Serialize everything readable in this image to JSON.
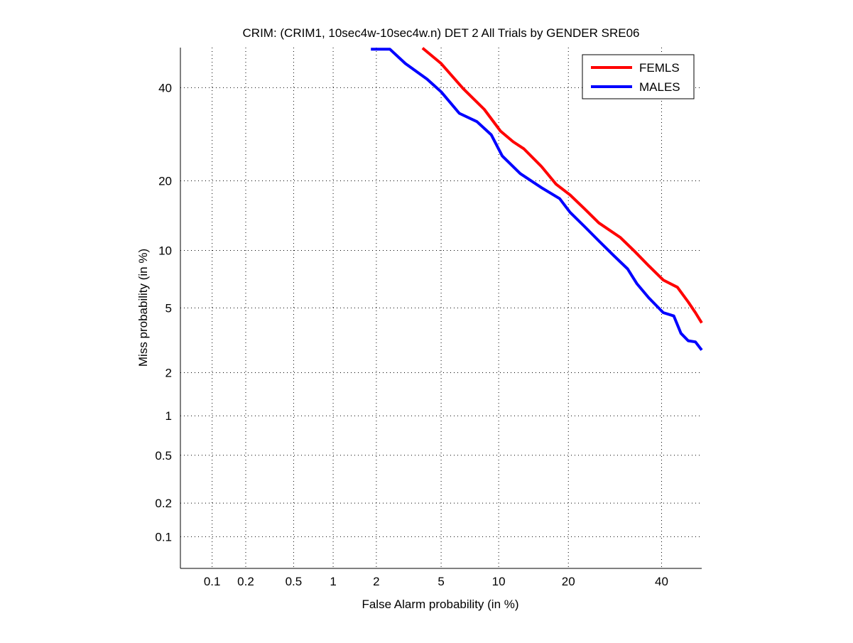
{
  "chart_data": {
    "type": "line",
    "title": "CRIM: (CRIM1, 10sec4w-10sec4w.n) DET 2 All Trials by GENDER SRE06",
    "xlabel": "False Alarm probability (in %)",
    "ylabel": "Miss probability (in %)",
    "x_scale": "normal-deviate",
    "y_scale": "normal-deviate",
    "xlim": [
      0.05,
      50
    ],
    "ylim": [
      0.05,
      50
    ],
    "grid": true,
    "legend_position": "top-right",
    "x_ticks": [
      0.1,
      0.2,
      0.5,
      1,
      2,
      5,
      10,
      20,
      40
    ],
    "x_tick_labels": [
      "0.1",
      "0.2",
      "0.5",
      "1",
      "2",
      "5",
      "10",
      "20",
      "40"
    ],
    "y_ticks": [
      0.1,
      0.2,
      0.5,
      1,
      2,
      5,
      10,
      20,
      40
    ],
    "y_tick_labels": [
      "0.1",
      "0.2",
      "0.5",
      "1",
      "2",
      "5",
      "10",
      "20",
      "40"
    ],
    "series": [
      {
        "name": "FEMLS",
        "color": "#ff0000",
        "x": [
          3.9,
          5.0,
          6.6,
          8.5,
          10.2,
          11.7,
          13.1,
          15.6,
          17.9,
          20.3,
          23.0,
          25.8,
          30.4,
          33.6,
          36.9,
          40.4,
          43.9,
          46.6,
          48.4,
          50
        ],
        "y": [
          49.9,
          46.0,
          39.8,
          34.8,
          29.9,
          27.6,
          26.1,
          22.6,
          19.4,
          17.6,
          15.4,
          13.4,
          11.5,
          9.9,
          8.4,
          7.1,
          6.5,
          5.4,
          4.7,
          4.1
        ]
      },
      {
        "name": "MALES",
        "color": "#0000ff",
        "x": [
          1.84,
          2.45,
          3.07,
          4.15,
          5.0,
          6.3,
          7.8,
          9.2,
          10.4,
          12.6,
          15.6,
          18.5,
          20.3,
          23.0,
          25.8,
          28.8,
          32.0,
          34.1,
          36.9,
          40.4,
          43.0,
          44.8,
          46.6,
          48.4,
          50
        ],
        "y": [
          49.6,
          49.6,
          46.0,
          42.1,
          39.0,
          33.9,
          32.0,
          29.1,
          24.7,
          21.3,
          18.8,
          17.0,
          14.9,
          12.9,
          11.1,
          9.5,
          8.1,
          6.8,
          5.7,
          4.7,
          4.5,
          3.55,
          3.2,
          3.15,
          2.8
        ]
      }
    ]
  }
}
